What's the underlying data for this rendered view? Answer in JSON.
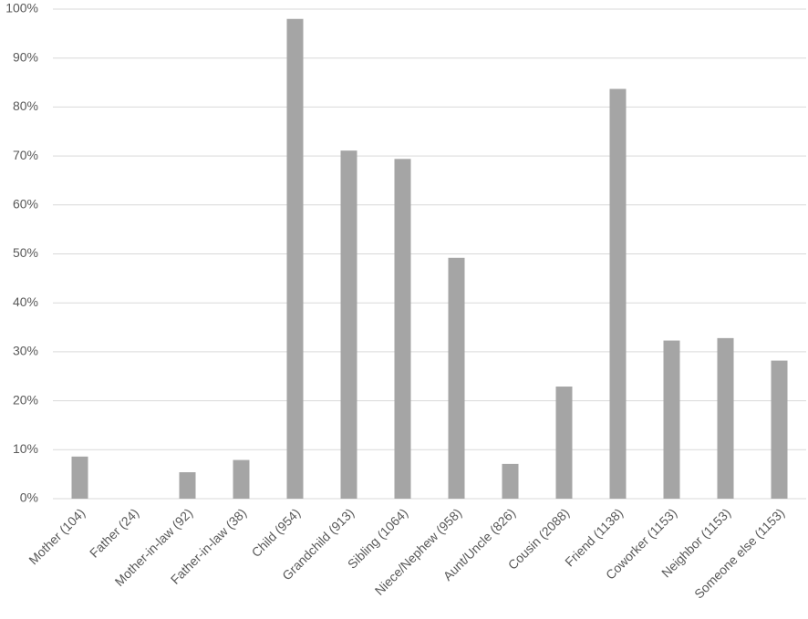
{
  "chart_data": {
    "type": "bar",
    "categories": [
      "Mother (104)",
      "Father (24)",
      "Mother-in-law (92)",
      "Father-in-law (38)",
      "Child (954)",
      "Grandchild (913)",
      "Sibling (1064)",
      "Niece/Nephew (958)",
      "Aunt/Uncle (826)",
      "Cousin (2088)",
      "Friend (1138)",
      "Coworker (1153)",
      "Neighbor (1153)",
      "Someone else (1153)"
    ],
    "values": [
      8.6,
      0,
      5.4,
      7.9,
      98,
      71.1,
      69.4,
      49.2,
      7.1,
      22.9,
      83.7,
      32.3,
      32.8,
      28.2
    ],
    "color": "#a5a5a5",
    "ylim": [
      0,
      100
    ],
    "yticks": [
      {
        "value": 0,
        "label": "0%"
      },
      {
        "value": 10,
        "label": "10%"
      },
      {
        "value": 20,
        "label": "20%"
      },
      {
        "value": 30,
        "label": "30%"
      },
      {
        "value": 40,
        "label": "40%"
      },
      {
        "value": 50,
        "label": "50%"
      },
      {
        "value": 60,
        "label": "60%"
      },
      {
        "value": 70,
        "label": "70%"
      },
      {
        "value": 80,
        "label": "80%"
      },
      {
        "value": 90,
        "label": "90%"
      },
      {
        "value": 100,
        "label": "100%"
      }
    ],
    "grid": true
  }
}
